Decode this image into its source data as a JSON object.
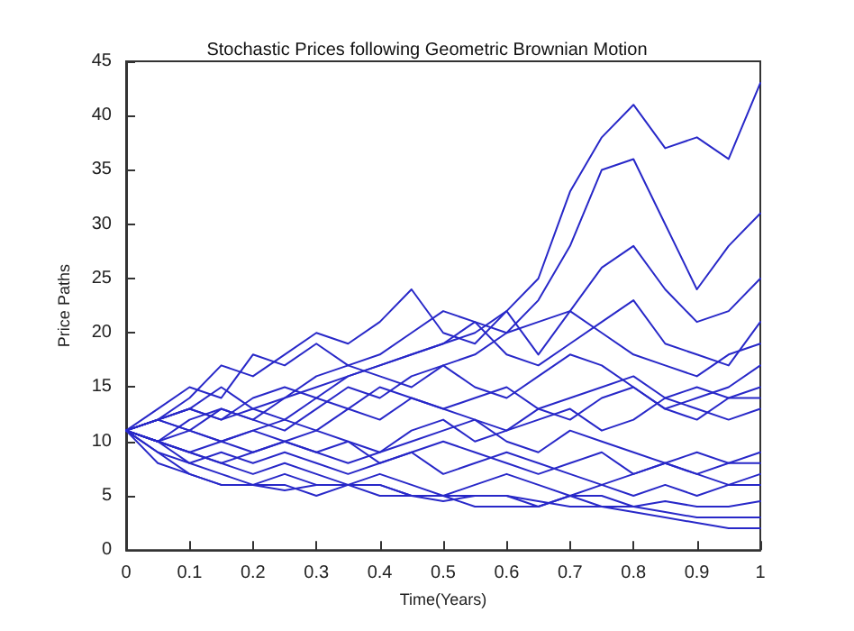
{
  "chart_data": {
    "type": "line",
    "title": "Stochastic Prices following Geometric Brownian Motion",
    "xlabel": "Time(Years)",
    "ylabel": "Price Paths",
    "x": [
      0,
      0.05,
      0.1,
      0.15,
      0.2,
      0.25,
      0.3,
      0.35,
      0.4,
      0.45,
      0.5,
      0.55,
      0.6,
      0.65,
      0.7,
      0.75,
      0.8,
      0.85,
      0.9,
      0.95,
      1
    ],
    "series": [
      {
        "color": "#2828c8",
        "values": [
          11,
          12,
          13,
          12,
          14,
          15,
          14,
          16,
          17,
          18,
          19,
          20,
          22,
          25,
          33,
          38,
          41,
          37,
          38,
          36,
          43
        ]
      },
      {
        "color": "#2828c8",
        "values": [
          11,
          12,
          11,
          13,
          12,
          14,
          15,
          16,
          17,
          18,
          19,
          21,
          20,
          23,
          28,
          35,
          36,
          30,
          24,
          28,
          31
        ]
      },
      {
        "color": "#2828c8",
        "values": [
          11,
          12,
          14,
          17,
          16,
          18,
          20,
          19,
          21,
          24,
          20,
          19,
          22,
          18,
          22,
          26,
          28,
          24,
          21,
          22,
          25
        ]
      },
      {
        "color": "#2828c8",
        "values": [
          11,
          13,
          15,
          14,
          18,
          17,
          19,
          17,
          18,
          20,
          22,
          21,
          18,
          17,
          19,
          21,
          23,
          19,
          18,
          17,
          21
        ]
      },
      {
        "color": "#2828c8",
        "values": [
          11,
          10,
          12,
          13,
          12,
          11,
          13,
          15,
          14,
          16,
          17,
          18,
          20,
          21,
          22,
          20,
          18,
          17,
          16,
          18,
          19
        ]
      },
      {
        "color": "#2828c8",
        "values": [
          11,
          12,
          13,
          15,
          13,
          14,
          16,
          17,
          16,
          15,
          17,
          15,
          14,
          16,
          18,
          17,
          15,
          13,
          14,
          15,
          17
        ]
      },
      {
        "color": "#2828c8",
        "values": [
          11,
          10,
          9,
          10,
          11,
          12,
          11,
          13,
          15,
          14,
          13,
          14,
          15,
          13,
          14,
          15,
          16,
          14,
          15,
          14,
          15
        ]
      },
      {
        "color": "#2828c8",
        "values": [
          11,
          12,
          13,
          12,
          13,
          12,
          14,
          13,
          12,
          14,
          13,
          12,
          11,
          13,
          12,
          14,
          15,
          13,
          12,
          14,
          14
        ]
      },
      {
        "color": "#2828c8",
        "values": [
          11,
          10,
          11,
          10,
          9,
          10,
          11,
          10,
          9,
          11,
          12,
          10,
          11,
          12,
          13,
          11,
          12,
          14,
          13,
          12,
          13
        ]
      },
      {
        "color": "#2828c8",
        "values": [
          11,
          10,
          9,
          8,
          9,
          10,
          9,
          8,
          9,
          10,
          11,
          12,
          10,
          9,
          11,
          10,
          9,
          8,
          9,
          8,
          9
        ]
      },
      {
        "color": "#2828c8",
        "values": [
          11,
          12,
          11,
          10,
          11,
          10,
          9,
          10,
          8,
          9,
          10,
          9,
          8,
          7,
          8,
          9,
          7,
          8,
          7,
          8,
          8
        ]
      },
      {
        "color": "#2828c8",
        "values": [
          11,
          9,
          8,
          9,
          8,
          9,
          8,
          7,
          8,
          9,
          7,
          8,
          9,
          8,
          7,
          6,
          7,
          8,
          7,
          6,
          7
        ]
      },
      {
        "color": "#2828c8",
        "values": [
          11,
          10,
          9,
          8,
          7,
          8,
          7,
          6,
          7,
          6,
          5,
          6,
          7,
          6,
          5,
          6,
          5,
          6,
          5,
          6,
          6
        ]
      },
      {
        "color": "#2828c8",
        "values": [
          11,
          10,
          8,
          7,
          6,
          7,
          6,
          6,
          5,
          5,
          4.5,
          5,
          5,
          4,
          5,
          5,
          4,
          4.5,
          4,
          4,
          4.5
        ]
      },
      {
        "color": "#2828c8",
        "values": [
          11,
          9,
          7,
          6,
          6,
          6,
          5,
          6,
          6,
          5,
          5,
          4,
          4,
          4,
          5,
          4,
          4,
          3.5,
          3,
          3,
          3
        ]
      },
      {
        "color": "#2828c8",
        "values": [
          11,
          8,
          7,
          6,
          6,
          5.5,
          6,
          6,
          6,
          5,
          5,
          5,
          5,
          4.5,
          4,
          4,
          3.5,
          3,
          2.5,
          2,
          2
        ]
      }
    ],
    "xlim": [
      0,
      1
    ],
    "xticks": [
      0,
      0.1,
      0.2,
      0.3,
      0.4,
      0.5,
      0.6,
      0.7,
      0.8,
      0.9,
      1
    ],
    "ylim": [
      0,
      45
    ],
    "yticks": [
      0,
      5,
      10,
      15,
      20,
      25,
      30,
      35,
      40,
      45
    ],
    "grid": false,
    "marker": "none",
    "line_style": "solid"
  }
}
